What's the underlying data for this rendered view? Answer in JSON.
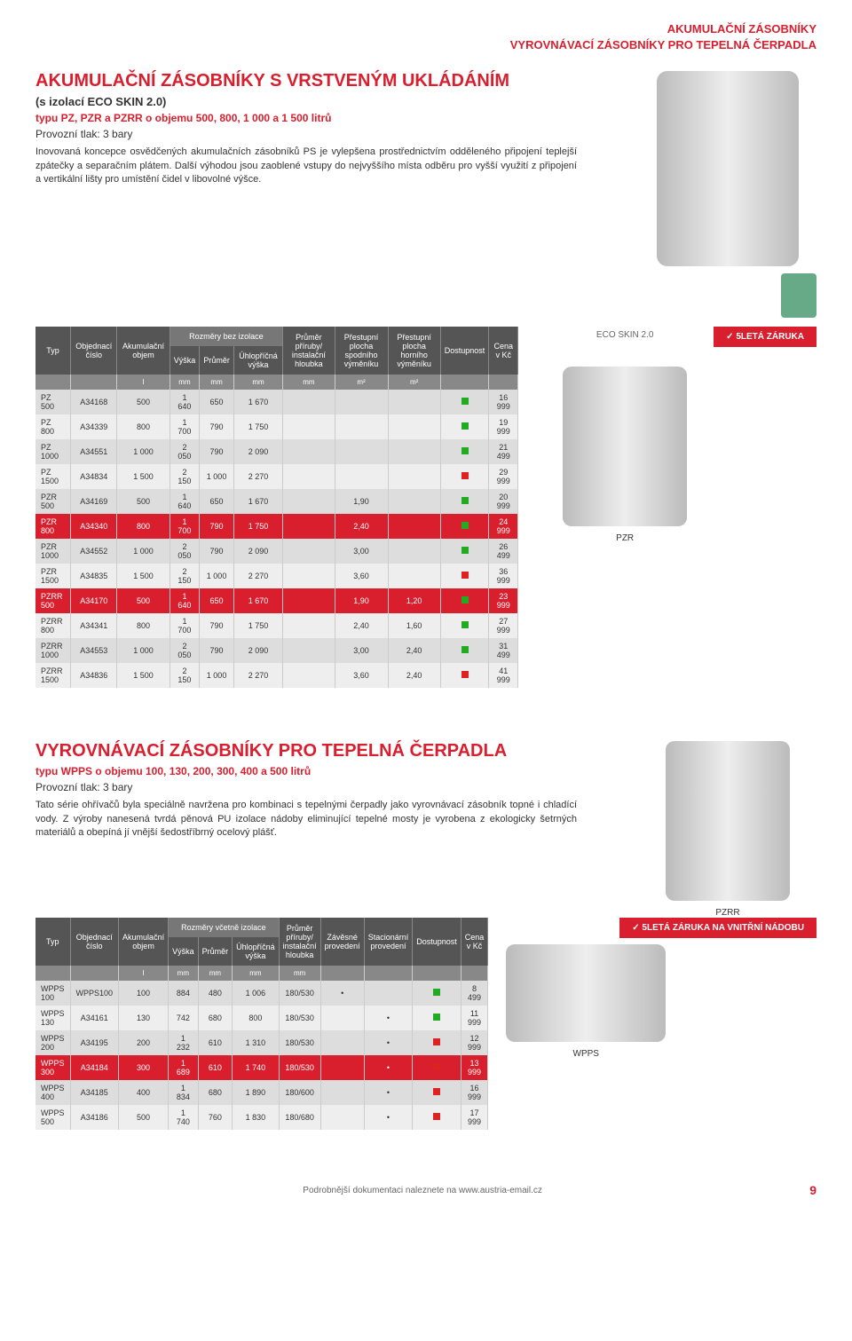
{
  "header": {
    "line1": "AKUMULAČNÍ ZÁSOBNÍKY",
    "line2": "VYROVNÁVACÍ ZÁSOBNÍKY PRO TEPELNÁ ČERPADLA"
  },
  "s1": {
    "title": "AKUMULAČNÍ ZÁSOBNÍKY S VRSTVENÝM UKLÁDÁNÍM",
    "subtitle": "(s izolací ECO SKIN 2.0)",
    "red": "typu PZ, PZR a PZRR o objemu 500, 800, 1 000 a 1 500 litrů",
    "black": "Provozní tlak: 3 bary",
    "desc": "Inovovaná koncepce osvědčených akumulačních zásobníků PS je vylepšena prostřednictvím odděleného připojení teplejší zpátečky a separačním plátem. Další výhodou jsou zaoblené vstupy do nejvyššího místa odběru pro vyšší využití z připojení a vertikální lišty pro umístění čidel v libovolné výšce.",
    "warranty": "5LETÁ ZÁRUKA",
    "ecolabel": "ECO SKIN 2.0",
    "caption1": "PZR",
    "caption2": "PZRR",
    "th_group": "Rozměry bez izolace",
    "th": [
      "Typ",
      "Objednací číslo",
      "Akumulační objem",
      "Výška",
      "Průměr",
      "Úhlopříčná výška",
      "Průměr příruby/ instalační hloubka",
      "Přestupní plocha spodního výměníku",
      "Přestupní plocha horního výměníku",
      "Dostupnost",
      "Cena v Kč"
    ],
    "units": [
      "",
      "",
      "l",
      "mm",
      "mm",
      "mm",
      "mm",
      "m²",
      "m²",
      "",
      ""
    ],
    "rows": [
      {
        "c": [
          "PZ 500",
          "A34168",
          "500",
          "1 640",
          "650",
          "1 670",
          "",
          "",
          "",
          "g",
          "16 999"
        ],
        "cls": "odd"
      },
      {
        "c": [
          "PZ 800",
          "A34339",
          "800",
          "1 700",
          "790",
          "1 750",
          "",
          "",
          "",
          "g",
          "19 999"
        ],
        "cls": "even"
      },
      {
        "c": [
          "PZ 1000",
          "A34551",
          "1 000",
          "2 050",
          "790",
          "2 090",
          "",
          "",
          "",
          "g",
          "21 499"
        ],
        "cls": "odd"
      },
      {
        "c": [
          "PZ 1500",
          "A34834",
          "1 500",
          "2 150",
          "1 000",
          "2 270",
          "",
          "",
          "",
          "r",
          "29 999"
        ],
        "cls": "even"
      },
      {
        "c": [
          "PZR 500",
          "A34169",
          "500",
          "1 640",
          "650",
          "1 670",
          "",
          "1,90",
          "",
          "g",
          "20 999"
        ],
        "cls": "odd"
      },
      {
        "c": [
          "PZR 800",
          "A34340",
          "800",
          "1 700",
          "790",
          "1 750",
          "",
          "2,40",
          "",
          "g",
          "24 999"
        ],
        "cls": "hl"
      },
      {
        "c": [
          "PZR 1000",
          "A34552",
          "1 000",
          "2 050",
          "790",
          "2 090",
          "",
          "3,00",
          "",
          "g",
          "26 499"
        ],
        "cls": "odd"
      },
      {
        "c": [
          "PZR 1500",
          "A34835",
          "1 500",
          "2 150",
          "1 000",
          "2 270",
          "",
          "3,60",
          "",
          "r",
          "36 999"
        ],
        "cls": "even"
      },
      {
        "c": [
          "PZRR 500",
          "A34170",
          "500",
          "1 640",
          "650",
          "1 670",
          "",
          "1,90",
          "1,20",
          "g",
          "23 999"
        ],
        "cls": "hl"
      },
      {
        "c": [
          "PZRR 800",
          "A34341",
          "800",
          "1 700",
          "790",
          "1 750",
          "",
          "2,40",
          "1,60",
          "g",
          "27 999"
        ],
        "cls": "even"
      },
      {
        "c": [
          "PZRR 1000",
          "A34553",
          "1 000",
          "2 050",
          "790",
          "2 090",
          "",
          "3,00",
          "2,40",
          "g",
          "31 499"
        ],
        "cls": "odd"
      },
      {
        "c": [
          "PZRR 1500",
          "A34836",
          "1 500",
          "2 150",
          "1 000",
          "2 270",
          "",
          "3,60",
          "2,40",
          "r",
          "41 999"
        ],
        "cls": "even"
      }
    ]
  },
  "s2": {
    "title": "VYROVNÁVACÍ ZÁSOBNÍKY PRO TEPELNÁ ČERPADLA",
    "red": "typu WPPS o objemu 100, 130, 200, 300, 400 a 500 litrů",
    "black": "Provozní tlak: 3 bary",
    "desc": "Tato série ohřívačů byla speciálně navržena pro kombinaci s tepelnými čerpadly jako vyrovnávací zásobník topné i chladící vody. Z výroby nanesená tvrdá pěnová PU izolace nádoby eliminující tepelné mosty je vyrobena z ekologicky šetrných materiálů a obepíná jí vnější šedostříbrný ocelový plášť.",
    "warranty": "5LETÁ ZÁRUKA NA VNITŘNÍ NÁDOBU",
    "caption": "PZRR",
    "caption2": "WPPS",
    "th_group": "Rozměry včetně izolace",
    "th": [
      "Typ",
      "Objednací číslo",
      "Akumulační objem",
      "Výška",
      "Průměr",
      "Úhlopříčná výška",
      "Průměr příruby/ instalační hloubka",
      "Závěsné provedení",
      "Stacionární provedení",
      "Dostupnost",
      "Cena v Kč"
    ],
    "units": [
      "",
      "",
      "l",
      "mm",
      "mm",
      "mm",
      "mm",
      "",
      "",
      "",
      ""
    ],
    "rows": [
      {
        "c": [
          "WPPS 100",
          "WPPS100",
          "100",
          "884",
          "480",
          "1 006",
          "180/530",
          "•",
          "",
          "g",
          "8 499"
        ],
        "cls": "odd"
      },
      {
        "c": [
          "WPPS 130",
          "A34161",
          "130",
          "742",
          "680",
          "800",
          "180/530",
          "",
          "•",
          "g",
          "11 999"
        ],
        "cls": "even"
      },
      {
        "c": [
          "WPPS 200",
          "A34195",
          "200",
          "1 232",
          "610",
          "1 310",
          "180/530",
          "",
          "•",
          "r",
          "12 999"
        ],
        "cls": "odd"
      },
      {
        "c": [
          "WPPS 300",
          "A34184",
          "300",
          "1 689",
          "610",
          "1 740",
          "180/530",
          "",
          "•",
          "r",
          "13 999"
        ],
        "cls": "hl"
      },
      {
        "c": [
          "WPPS 400",
          "A34185",
          "400",
          "1 834",
          "680",
          "1 890",
          "180/600",
          "",
          "•",
          "r",
          "16 999"
        ],
        "cls": "odd"
      },
      {
        "c": [
          "WPPS 500",
          "A34186",
          "500",
          "1 740",
          "760",
          "1 830",
          "180/680",
          "",
          "•",
          "r",
          "17 999"
        ],
        "cls": "even"
      }
    ]
  },
  "footer": {
    "text": "Podrobnější dokumentaci naleznete na www.austria-email.cz",
    "page": "9"
  }
}
